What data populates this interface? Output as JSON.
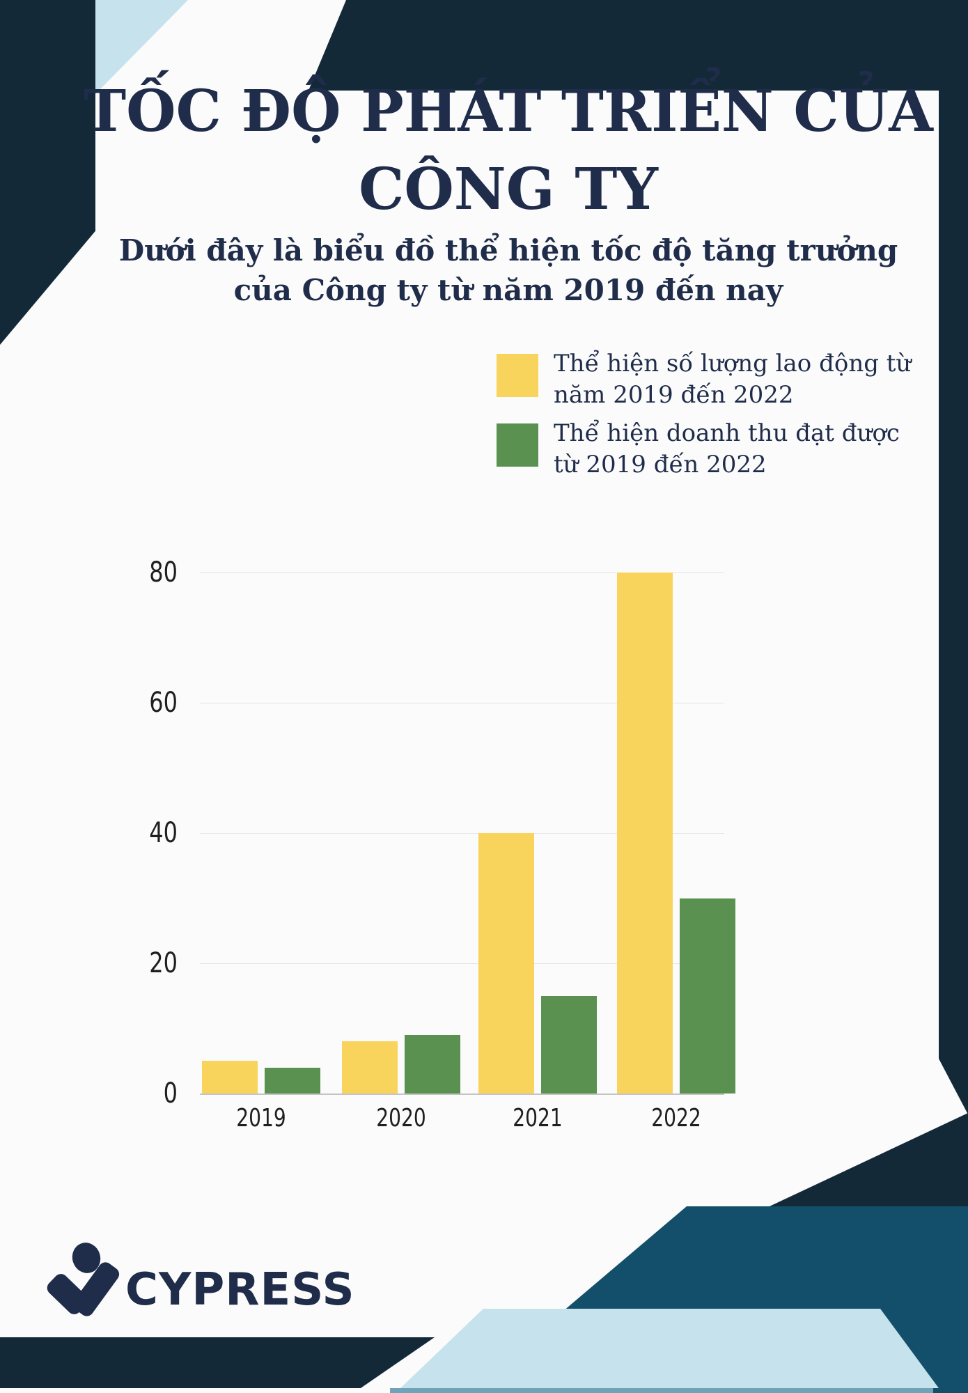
{
  "poster": {
    "title_line1": "TỐC ĐỘ PHÁT TRIỂN CỦA",
    "title_line2": "CÔNG TY",
    "subtitle_line1": "Dưới đây là biểu đồ thể hiện tốc độ tăng trưởng",
    "subtitle_line2": "của Công ty từ năm 2019 đến nay"
  },
  "chart_data": {
    "type": "bar",
    "title": "",
    "categories": [
      "2019",
      "2020",
      "2021",
      "2022"
    ],
    "series": [
      {
        "name": "Thể hiện số lượng lao động từ năm 2019 đến 2022",
        "color": "#F9D45C",
        "values": [
          5,
          8,
          40,
          80
        ]
      },
      {
        "name": "Thể hiện doanh thu đạt được từ 2019 đến 2022",
        "color": "#5A9150",
        "values": [
          4,
          9,
          15,
          30
        ]
      }
    ],
    "xlabel": "",
    "ylabel": "",
    "ylim": [
      0,
      80
    ],
    "yticks": [
      0,
      20,
      40,
      60,
      80
    ],
    "grid": true,
    "legend_position": "top-right"
  },
  "logo": {
    "text": "CYPRESS"
  },
  "colors": {
    "navy": "#142938",
    "teal": "#134F6A",
    "light_blue": "#C6E2EC",
    "strip_blue": "#6FA3BA",
    "text_navy": "#1F2C4A",
    "bar_yellow": "#F9D45C",
    "bar_green": "#5A9150"
  }
}
